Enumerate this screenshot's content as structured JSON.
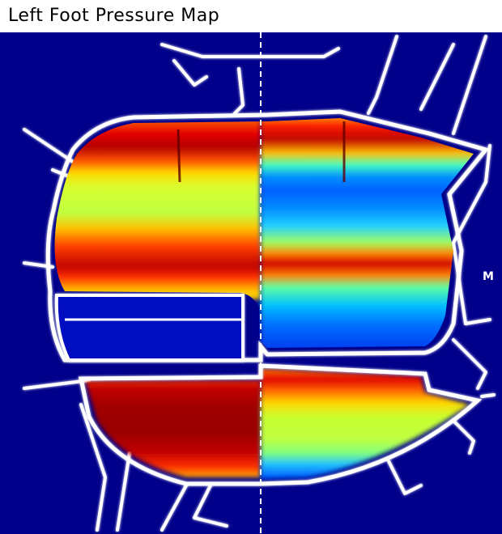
{
  "header": {
    "title": "Left Foot Pressure Map"
  },
  "map": {
    "side_label": "M",
    "colors": {
      "background": "#00008b",
      "outline": "#ffffff",
      "colormap": [
        "#00008b",
        "#0000ff",
        "#0080ff",
        "#00ffff",
        "#80ff80",
        "#ffff00",
        "#ff8000",
        "#ff0000",
        "#800000"
      ]
    }
  }
}
